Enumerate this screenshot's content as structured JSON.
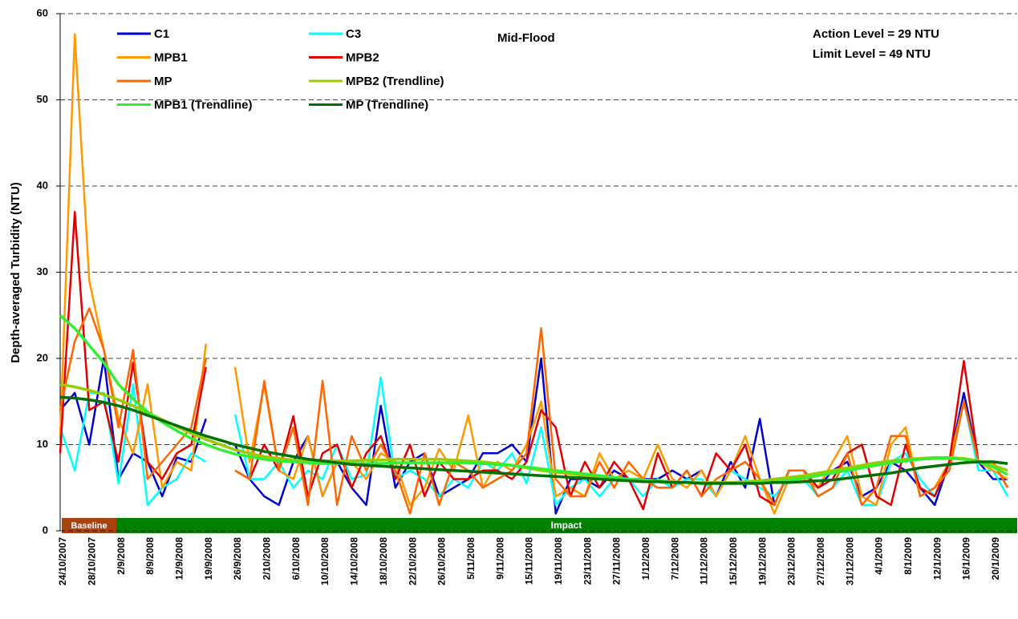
{
  "chart_data": {
    "type": "line",
    "annotations": [
      "Mid-Flood",
      "Action Level = 29 NTU",
      "Limit Level = 49 NTU"
    ],
    "y_label": "Depth-averaged Turbidity (NTU)",
    "periods": [
      "Baseline",
      "Impact"
    ],
    "categories": [
      "24/10/2007",
      null,
      "28/10/2007",
      null,
      "2/9/2008",
      null,
      "8/9/2008",
      null,
      "12/9/2008",
      null,
      "19/9/2008",
      null,
      "26/9/2008",
      null,
      "2/10/2008",
      null,
      "6/10/2008",
      null,
      "10/10/2008",
      null,
      "14/10/2008",
      null,
      "18/10/2008",
      null,
      "22/10/2008",
      null,
      "26/10/2008",
      null,
      "5/11/2008",
      null,
      "9/11/2008",
      null,
      "15/11/2008",
      null,
      "19/11/2008",
      null,
      "23/11/2008",
      null,
      "27/11/2008",
      null,
      "1/12/2008",
      null,
      "7/12/2008",
      null,
      "11/12/2008",
      null,
      "15/12/2008",
      null,
      "19/12/2008",
      null,
      "23/12/2008",
      null,
      "27/12/2008",
      null,
      "31/12/2008",
      null,
      "4/1/2009",
      null,
      "8/1/2009",
      null,
      "12/1/2009",
      null,
      "16/1/2009",
      null,
      "20/1/2009",
      null
    ],
    "ylim": [
      0,
      60
    ],
    "yticks": [
      0,
      10,
      20,
      30,
      40,
      50,
      60
    ],
    "grid": true,
    "series": [
      {
        "name": "C1",
        "color": "#0000cc",
        "width": 2.5,
        "values": [
          14,
          16,
          10,
          20,
          6,
          9,
          8,
          4,
          8.5,
          8,
          13,
          null,
          10,
          6,
          4,
          3,
          8,
          11,
          4,
          8,
          5,
          3,
          14.5,
          5,
          8,
          9,
          4,
          5,
          6,
          9,
          9,
          10,
          8,
          20,
          2,
          6,
          6,
          5,
          7,
          6,
          6,
          6,
          7,
          6,
          7,
          4,
          8,
          5,
          13,
          3,
          7,
          7,
          5,
          7,
          8,
          4,
          5,
          8,
          7,
          5,
          3,
          8,
          16,
          8,
          6,
          6
        ]
      },
      {
        "name": "C3",
        "color": "#00ffff",
        "width": 2.5,
        "values": [
          12,
          7,
          16,
          16,
          5.5,
          17,
          3,
          5,
          6,
          9,
          8,
          null,
          13.5,
          6,
          6,
          8,
          5,
          7,
          6,
          10,
          6,
          6.5,
          17.8,
          6,
          7,
          6,
          4,
          6,
          5,
          8,
          7,
          9,
          5.5,
          12,
          3,
          5,
          6,
          4,
          6,
          6,
          4,
          6,
          5,
          6,
          6,
          4,
          7,
          6,
          5,
          4,
          6,
          6,
          4,
          5,
          7,
          3,
          3,
          8,
          9,
          6,
          4,
          8,
          15,
          7,
          7,
          4
        ]
      },
      {
        "name": "MPB1",
        "color": "#ff9900",
        "width": 2.5,
        "values": [
          11,
          57.6,
          29,
          21,
          13,
          9,
          17,
          5,
          8,
          7,
          21.7,
          null,
          19,
          8,
          17,
          7,
          6,
          11,
          4,
          8,
          8,
          6,
          9,
          8,
          3,
          5,
          9.5,
          7,
          13.4,
          5,
          8,
          7,
          10,
          15,
          4,
          5,
          4,
          9,
          6,
          7,
          6,
          10,
          6,
          5,
          7,
          4,
          7,
          11,
          6,
          2,
          6,
          6,
          5,
          8,
          11,
          4,
          3,
          10,
          12,
          4,
          5,
          8,
          15,
          8,
          7,
          6
        ]
      },
      {
        "name": "MPB2",
        "color": "#e00000",
        "width": 2.5,
        "values": [
          9,
          37,
          14,
          15,
          8,
          19.5,
          8,
          6,
          9,
          10,
          19,
          null,
          7,
          6,
          10,
          7,
          13.3,
          4,
          9,
          10,
          5,
          9,
          11,
          6,
          10,
          4,
          8,
          6,
          6,
          7,
          7,
          6,
          8,
          14,
          12,
          4,
          8,
          5,
          8,
          6,
          2.5,
          9,
          5,
          7,
          4,
          9,
          7,
          10,
          4,
          3,
          7,
          7,
          5,
          6,
          9,
          10,
          4,
          3,
          10,
          5,
          4,
          8,
          19.7,
          8,
          8,
          5
        ]
      },
      {
        "name": "MP",
        "color": "#ff6600",
        "width": 2.5,
        "values": [
          14,
          22,
          25.8,
          21,
          12,
          21,
          6,
          8,
          10,
          12,
          20,
          null,
          7,
          6,
          17.4,
          7,
          12,
          3,
          17.4,
          3,
          11,
          7,
          10,
          7,
          2,
          9,
          3,
          8,
          7,
          5,
          6,
          7,
          9,
          23.5,
          6,
          4,
          4,
          8,
          5,
          8,
          6,
          5,
          5,
          7,
          4,
          6,
          7,
          8,
          6,
          3,
          7,
          7,
          4,
          5,
          9,
          3,
          5,
          11,
          11,
          4,
          5,
          7,
          15,
          8,
          8,
          5
        ]
      },
      {
        "name": "MPB2 (Trendline)",
        "color": "#99cc00",
        "width": 3.5,
        "values": [
          17,
          16.7,
          16.3,
          15.8,
          15.2,
          14.5,
          13.7,
          12.9,
          12.1,
          11.3,
          10.6,
          10,
          9.4,
          9,
          8.6,
          8.4,
          8.2,
          8.1,
          8.1,
          8.1,
          8.1,
          8.2,
          8.2,
          8.3,
          8.3,
          8.3,
          8.3,
          8.2,
          8.1,
          8,
          7.8,
          7.6,
          7.3,
          7,
          6.8,
          6.6,
          6.4,
          6.2,
          6,
          5.9,
          5.8,
          5.7,
          5.6,
          5.6,
          5.6,
          5.6,
          5.6,
          5.7,
          5.8,
          6,
          6.2,
          6.4,
          6.7,
          7,
          7.3,
          7.6,
          7.9,
          8.1,
          8.3,
          8.4,
          8.5,
          8.5,
          8.4,
          8.1,
          7.6,
          7
        ]
      },
      {
        "name": "MPB1 (Trendline)",
        "color": "#33ee33",
        "width": 3.5,
        "values": [
          25,
          23.5,
          21.5,
          19.5,
          17,
          15.3,
          13.8,
          12.6,
          11.6,
          10.7,
          10,
          9.4,
          8.9,
          8.6,
          8.3,
          8.1,
          8,
          7.9,
          7.8,
          7.8,
          7.8,
          7.8,
          7.8,
          7.9,
          7.9,
          7.9,
          7.9,
          7.9,
          7.9,
          7.8,
          7.7,
          7.6,
          7.4,
          7.2,
          7,
          6.8,
          6.6,
          6.4,
          6.2,
          6,
          5.9,
          5.8,
          5.7,
          5.6,
          5.5,
          5.5,
          5.5,
          5.5,
          5.6,
          5.7,
          5.9,
          6.1,
          6.4,
          6.7,
          7,
          7.3,
          7.6,
          7.9,
          8.1,
          8.3,
          8.4,
          8.4,
          8.3,
          8,
          7.4,
          6.5
        ]
      },
      {
        "name": "MP (Trendline)",
        "color": "#007000",
        "width": 3.5,
        "values": [
          15.5,
          15.4,
          15.2,
          14.9,
          14.5,
          14,
          13.4,
          12.8,
          12.2,
          11.6,
          11,
          10.5,
          10,
          9.6,
          9.2,
          8.9,
          8.6,
          8.3,
          8.1,
          7.9,
          7.7,
          7.6,
          7.5,
          7.4,
          7.3,
          7.2,
          7.1,
          7,
          6.9,
          6.8,
          6.7,
          6.6,
          6.5,
          6.4,
          6.3,
          6.2,
          6.1,
          6,
          5.9,
          5.8,
          5.7,
          5.7,
          5.6,
          5.6,
          5.5,
          5.5,
          5.5,
          5.5,
          5.5,
          5.6,
          5.6,
          5.7,
          5.8,
          5.9,
          6.1,
          6.3,
          6.5,
          6.7,
          7,
          7.3,
          7.5,
          7.7,
          7.9,
          8,
          8,
          7.8
        ]
      }
    ]
  }
}
